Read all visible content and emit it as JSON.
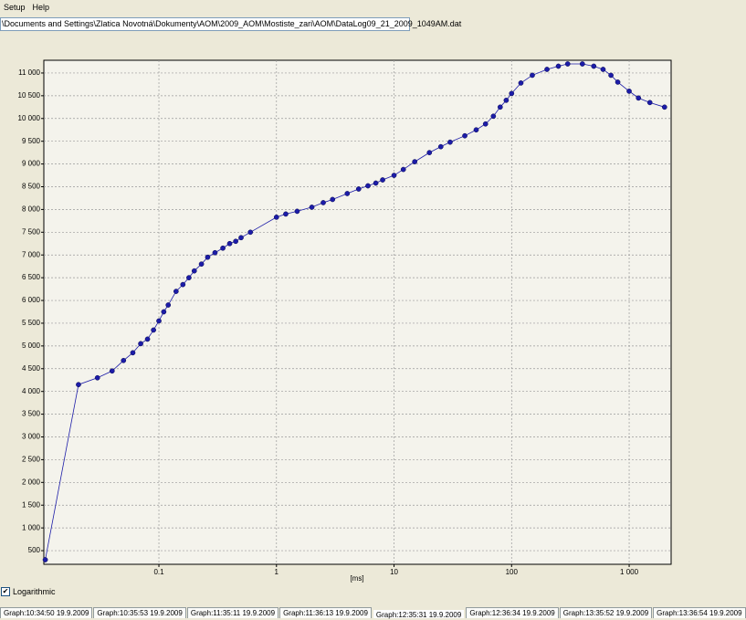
{
  "menu": [
    "Setup",
    "Help"
  ],
  "file_path": "\\Documents and Settings\\Zlatica Novotná\\Dokumenty\\AOM\\2009_AOM\\Mostiste_zari\\AOM\\DataLog09_21_2009_1049AM.dat",
  "chart_data": {
    "type": "line",
    "markers": true,
    "x_label": "[ms]",
    "xlog": true,
    "grid": true,
    "xlim": [
      0.0105,
      2275
    ],
    "ylim": [
      200,
      11280
    ],
    "xticks": [
      0.1,
      1,
      10,
      100,
      {
        "value": 1000,
        "label": "1 000"
      }
    ],
    "yticks": [
      500,
      {
        "value": 1000,
        "label": "1 000"
      },
      {
        "value": 1500,
        "label": "1 500"
      },
      {
        "value": 2000,
        "label": "2 000"
      },
      {
        "value": 2500,
        "label": "2 500"
      },
      {
        "value": 3000,
        "label": "3 000"
      },
      {
        "value": 3500,
        "label": "3 500"
      },
      {
        "value": 4000,
        "label": "4 000"
      },
      {
        "value": 4500,
        "label": "4 500"
      },
      {
        "value": 5000,
        "label": "5 000"
      },
      {
        "value": 5500,
        "label": "5 500"
      },
      {
        "value": 6000,
        "label": "6 000"
      },
      {
        "value": 6500,
        "label": "6 500"
      },
      {
        "value": 7000,
        "label": "7 000"
      },
      {
        "value": 7500,
        "label": "7 500"
      },
      {
        "value": 8000,
        "label": "8 000"
      },
      {
        "value": 8500,
        "label": "8 500"
      },
      {
        "value": 9000,
        "label": "9 000"
      },
      {
        "value": 9500,
        "label": "9 500"
      },
      {
        "value": 10000,
        "label": "10 000"
      },
      {
        "value": 10500,
        "label": "10 500"
      },
      {
        "value": 11000,
        "label": "11 000"
      }
    ],
    "series": [
      {
        "color": "#1c1ca8",
        "x": [
          0.0108,
          0.0207,
          0.03,
          0.04,
          0.05,
          0.06,
          0.07,
          0.08,
          0.09,
          0.1,
          0.11,
          0.12,
          0.14,
          0.16,
          0.18,
          0.2,
          0.23,
          0.26,
          0.3,
          0.35,
          0.4,
          0.45,
          0.5,
          0.6,
          1.0,
          1.2,
          1.5,
          2,
          2.5,
          3,
          4,
          5,
          6,
          7,
          8,
          10,
          12,
          15,
          20,
          25,
          30,
          40,
          50,
          60,
          70,
          80,
          90,
          100,
          120,
          150,
          200,
          250,
          300,
          400,
          500,
          600,
          700,
          800,
          1000,
          1200,
          1500,
          2000
        ],
        "values": [
          300,
          4150,
          4300,
          4450,
          4680,
          4850,
          5050,
          5150,
          5350,
          5550,
          5750,
          5900,
          6200,
          6350,
          6500,
          6650,
          6800,
          6950,
          7050,
          7150,
          7250,
          7300,
          7380,
          7500,
          7830,
          7900,
          7960,
          8050,
          8150,
          8220,
          8350,
          8450,
          8520,
          8580,
          8650,
          8750,
          8880,
          9050,
          9250,
          9380,
          9480,
          9620,
          9750,
          9880,
          10050,
          10250,
          10400,
          10550,
          10780,
          10950,
          11080,
          11150,
          11200,
          11200,
          11150,
          11080,
          10950,
          10800,
          10600,
          10450,
          10350,
          10250
        ]
      }
    ]
  },
  "options": {
    "logarithmic_label": "Logarithmic"
  },
  "tabs": [
    "Graph:10:34:50 19.9.2009",
    "Graph:10:35:53 19.9.2009",
    "Graph:11:35:11 19.9.2009",
    "Graph:11:36:13 19.9.2009",
    "Graph:12:35:31 19.9.2009",
    "Graph:12:36:34 19.9.2009",
    "Graph:13:35:52 19.9.2009",
    "Graph:13:36:54 19.9.2009"
  ],
  "selected_tab": 4
}
